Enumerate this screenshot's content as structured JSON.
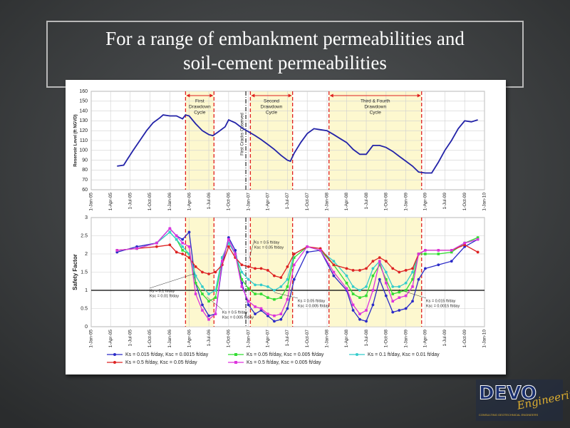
{
  "slide": {
    "title_lines": [
      "For a range of embankment permeabilities and",
      "soil-cement permeabilities"
    ]
  },
  "chart_data": [
    {
      "type": "line",
      "ylabel": "Reservoir Level (ft NGVD)",
      "color": "#2323a8",
      "grid": true,
      "x": [
        "2005-05-01",
        "2005-06-01",
        "2005-06-15",
        "2005-07-15",
        "2005-08-15",
        "2005-09-15",
        "2005-10-15",
        "2005-11-15",
        "2005-12-01",
        "2006-01-01",
        "2006-02-01",
        "2006-03-01",
        "2006-03-15",
        "2006-04-01",
        "2006-05-01",
        "2006-06-01",
        "2006-07-01",
        "2006-07-20",
        "2006-08-15",
        "2006-09-15",
        "2006-10-01",
        "2006-11-01",
        "2006-12-01",
        "2007-01-01",
        "2007-02-01",
        "2007-03-01",
        "2007-04-01",
        "2007-05-01",
        "2007-06-01",
        "2007-07-01",
        "2007-07-15",
        "2007-08-01",
        "2007-09-01",
        "2007-10-01",
        "2007-11-01",
        "2007-12-01",
        "2008-01-01",
        "2008-02-01",
        "2008-03-01",
        "2008-04-01",
        "2008-05-01",
        "2008-06-01",
        "2008-07-01",
        "2008-08-01",
        "2008-09-01",
        "2008-10-01",
        "2008-11-01",
        "2008-12-01",
        "2009-01-01",
        "2009-02-01",
        "2009-03-01",
        "2009-04-01",
        "2009-05-01",
        "2009-06-01",
        "2009-07-01",
        "2009-08-01",
        "2009-09-01",
        "2009-10-01",
        "2009-11-01",
        "2009-12-01"
      ],
      "values": [
        84,
        85,
        90,
        100,
        110,
        120,
        128,
        133,
        136,
        135,
        135,
        132,
        136,
        135,
        127,
        120,
        116,
        115,
        119,
        124,
        131,
        128,
        123,
        119,
        115,
        111,
        106,
        101,
        95,
        90,
        89,
        97,
        108,
        117,
        122,
        121,
        120,
        116,
        112,
        108,
        101,
        96,
        96,
        105,
        105,
        103,
        99,
        94,
        89,
        84,
        78,
        77,
        77,
        88,
        100,
        110,
        122,
        130,
        129,
        131
      ],
      "xlim": [
        "2005-01-01",
        "2010-01-01"
      ],
      "ylim": [
        60,
        160
      ],
      "yticks": [
        60,
        70,
        80,
        90,
        100,
        110,
        120,
        130,
        140,
        150,
        160
      ],
      "xticks": [
        {
          "value": "2005-01-01",
          "label": "1-Jan-05"
        },
        {
          "value": "2005-04-01",
          "label": "1-Apr-05"
        },
        {
          "value": "2005-07-01",
          "label": "1-Jul-05"
        },
        {
          "value": "2005-10-01",
          "label": "1-Oct-05"
        },
        {
          "value": "2006-01-01",
          "label": "1-Jan-06"
        },
        {
          "value": "2006-04-01",
          "label": "1-Apr-06"
        },
        {
          "value": "2006-07-01",
          "label": "1-Jul-06"
        },
        {
          "value": "2006-10-01",
          "label": "1-Oct-06"
        },
        {
          "value": "2007-01-01",
          "label": "1-Jan-07"
        },
        {
          "value": "2007-04-01",
          "label": "1-Apr-07"
        },
        {
          "value": "2007-07-01",
          "label": "1-Jul-07"
        },
        {
          "value": "2007-10-01",
          "label": "1-Oct-07"
        },
        {
          "value": "2008-01-01",
          "label": "1-Jan-08"
        },
        {
          "value": "2008-04-01",
          "label": "1-Apr-08"
        },
        {
          "value": "2008-07-01",
          "label": "1-Jul-08"
        },
        {
          "value": "2008-10-01",
          "label": "1-Oct-08"
        },
        {
          "value": "2009-01-01",
          "label": "1-Jan-09"
        },
        {
          "value": "2009-04-01",
          "label": "1-Apr-09"
        },
        {
          "value": "2009-07-01",
          "label": "1-Jul-09"
        },
        {
          "value": "2009-10-01",
          "label": "1-Oct-09"
        },
        {
          "value": "2010-01-01",
          "label": "1-Jan-10"
        }
      ],
      "bands": [
        {
          "from": "2006-03-15",
          "to": "2006-07-25",
          "label_lines": [
            "First",
            "Drawdown",
            "Cycle"
          ]
        },
        {
          "from": "2007-01-10",
          "to": "2007-07-25",
          "label_lines": [
            "Second",
            "Drawdown",
            "Cycle"
          ]
        },
        {
          "from": "2008-01-10",
          "to": "2009-03-15",
          "label_lines": [
            "Third & Fourth",
            "Drawdown",
            "Cycle"
          ]
        }
      ],
      "vline": {
        "x": "2006-12-20",
        "label": "First Cracks Observed"
      }
    },
    {
      "type": "line",
      "ylabel": "Safety Factor",
      "grid": true,
      "reference_line": 1,
      "x": [
        "2005-05-01",
        "2005-08-01",
        "2005-11-01",
        "2006-01-01",
        "2006-02-01",
        "2006-03-01",
        "2006-04-01",
        "2006-05-01",
        "2006-06-01",
        "2006-07-01",
        "2006-08-01",
        "2006-09-01",
        "2006-10-01",
        "2006-11-01",
        "2006-12-01",
        "2007-01-01",
        "2007-02-01",
        "2007-03-01",
        "2007-04-01",
        "2007-05-01",
        "2007-06-01",
        "2007-07-01",
        "2007-08-01",
        "2007-10-01",
        "2007-12-01",
        "2008-02-01",
        "2008-04-01",
        "2008-05-01",
        "2008-06-01",
        "2008-07-01",
        "2008-08-01",
        "2008-09-01",
        "2008-10-01",
        "2008-11-01",
        "2008-12-01",
        "2009-01-01",
        "2009-02-01",
        "2009-03-01",
        "2009-04-01",
        "2009-06-01",
        "2009-08-01",
        "2009-10-01",
        "2009-12-01"
      ],
      "series": [
        {
          "name": "Ks = 0.015 ft/day, Ksc = 0.0015 ft/day",
          "color": "#2b2bc8",
          "marker": "circle",
          "values": [
            2.05,
            2.2,
            2.3,
            2.7,
            2.5,
            2.4,
            2.6,
            1.2,
            0.6,
            0.3,
            0.35,
            1.7,
            2.45,
            2.1,
            1.2,
            0.6,
            0.35,
            0.45,
            0.3,
            0.15,
            0.2,
            0.5,
            1.3,
            2.05,
            2.1,
            1.4,
            1.0,
            0.45,
            0.2,
            0.15,
            0.6,
            1.3,
            0.85,
            0.4,
            0.45,
            0.5,
            0.7,
            1.3,
            1.6,
            1.7,
            1.8,
            2.2,
            2.4
          ]
        },
        {
          "name": "Ks = 0.05 ft/day, Ksc = 0.005 ft/day",
          "color": "#33dd33",
          "marker": "square",
          "values": [
            2.1,
            2.15,
            2.3,
            2.6,
            2.4,
            2.1,
            2.0,
            1.2,
            0.9,
            0.7,
            0.8,
            1.9,
            2.3,
            2.0,
            1.3,
            1.05,
            0.9,
            0.9,
            0.8,
            0.75,
            0.8,
            1.1,
            1.9,
            2.2,
            2.1,
            1.7,
            1.2,
            0.9,
            0.8,
            0.85,
            1.4,
            1.7,
            1.3,
            0.9,
            0.95,
            1.0,
            1.3,
            2.0,
            2.0,
            2.0,
            2.05,
            2.3,
            2.45
          ]
        },
        {
          "name": "Ks = 0.1 ft/day, Ksc = 0.01 ft/day",
          "color": "#33cccc",
          "marker": "circle",
          "values": [
            2.1,
            2.15,
            2.3,
            2.6,
            2.4,
            2.2,
            2.0,
            1.4,
            1.1,
            0.9,
            1.0,
            1.9,
            2.3,
            2.0,
            1.5,
            1.3,
            1.15,
            1.15,
            1.1,
            1.0,
            1.1,
            1.3,
            2.0,
            2.2,
            2.1,
            1.8,
            1.4,
            1.1,
            1.0,
            1.1,
            1.6,
            1.8,
            1.5,
            1.1,
            1.1,
            1.2,
            1.5,
            2.0,
            2.1,
            2.1,
            2.1,
            2.3,
            2.4
          ]
        },
        {
          "name": "Ks = 0.5 ft/day, Ksc = 0.05 ft/day",
          "color": "#dd2222",
          "marker": "circle",
          "values": [
            2.1,
            2.15,
            2.2,
            2.25,
            2.05,
            2.0,
            1.9,
            1.65,
            1.5,
            1.45,
            1.5,
            1.7,
            2.2,
            1.9,
            1.7,
            1.65,
            1.6,
            1.6,
            1.55,
            1.4,
            1.35,
            1.65,
            2.0,
            2.2,
            2.15,
            1.7,
            1.6,
            1.55,
            1.55,
            1.6,
            1.8,
            1.9,
            1.8,
            1.6,
            1.5,
            1.55,
            1.6,
            2.0,
            2.1,
            2.1,
            2.1,
            2.25,
            2.05
          ]
        },
        {
          "name": "Ks = 0.5 ft/day, Ksc = 0.005 ft/day",
          "color": "#dd33dd",
          "marker": "square",
          "values": [
            2.1,
            2.15,
            2.3,
            2.7,
            2.5,
            2.3,
            2.2,
            0.9,
            0.45,
            0.2,
            0.35,
            1.8,
            2.4,
            2.0,
            1.1,
            0.7,
            0.55,
            0.5,
            0.35,
            0.3,
            0.35,
            0.75,
            1.7,
            2.2,
            2.1,
            1.5,
            1.05,
            0.6,
            0.35,
            0.45,
            1.0,
            1.8,
            1.2,
            0.7,
            0.8,
            0.85,
            1.1,
            2.0,
            2.1,
            2.1,
            2.1,
            2.3,
            2.4
          ]
        }
      ],
      "xlim": [
        "2005-01-01",
        "2010-01-01"
      ],
      "ylim": [
        0,
        3
      ],
      "yticks": [
        0,
        0.5,
        1,
        1.5,
        2,
        2.5,
        3
      ],
      "xticks": [
        {
          "value": "2005-01-01",
          "label": "1-Jan-05"
        },
        {
          "value": "2005-04-01",
          "label": "1-Apr-05"
        },
        {
          "value": "2005-07-01",
          "label": "1-Jul-05"
        },
        {
          "value": "2005-10-01",
          "label": "1-Oct-05"
        },
        {
          "value": "2006-01-01",
          "label": "1-Jan-06"
        },
        {
          "value": "2006-04-01",
          "label": "1-Apr-06"
        },
        {
          "value": "2006-07-01",
          "label": "1-Jul-06"
        },
        {
          "value": "2006-10-01",
          "label": "1-Oct-06"
        },
        {
          "value": "2007-01-01",
          "label": "1-Jan-07"
        },
        {
          "value": "2007-04-01",
          "label": "1-Apr-07"
        },
        {
          "value": "2007-07-01",
          "label": "1-Jul-07"
        },
        {
          "value": "2007-10-01",
          "label": "1-Oct-07"
        },
        {
          "value": "2008-01-01",
          "label": "1-Jan-08"
        },
        {
          "value": "2008-04-01",
          "label": "1-Apr-08"
        },
        {
          "value": "2008-07-01",
          "label": "1-Jul-08"
        },
        {
          "value": "2008-10-01",
          "label": "1-Oct-08"
        },
        {
          "value": "2009-01-01",
          "label": "1-Jan-09"
        },
        {
          "value": "2009-04-01",
          "label": "1-Apr-09"
        },
        {
          "value": "2009-07-01",
          "label": "1-Jul-09"
        },
        {
          "value": "2009-10-01",
          "label": "1-Oct-09"
        },
        {
          "value": "2010-01-01",
          "label": "1-Jan-10"
        }
      ],
      "bands": [
        {
          "from": "2006-03-15",
          "to": "2006-07-25"
        },
        {
          "from": "2007-01-10",
          "to": "2007-07-25"
        },
        {
          "from": "2008-01-10",
          "to": "2009-03-15"
        }
      ],
      "vline": {
        "x": "2006-12-20"
      },
      "annotations": [
        {
          "text_lines": [
            "Ks = 0.5 ft/day",
            "Ksc = 0.05 ft/day"
          ]
        },
        {
          "text_lines": [
            "Ks = 0.1 ft/day",
            "Ksc = 0.01 ft/day"
          ]
        },
        {
          "text_lines": [
            "Ks = 0.5 ft/day",
            "Ksc = 0.005 ft/day"
          ]
        },
        {
          "text_lines": [
            "Ks = 0.05 ft/day",
            "Ksc = 0.005 ft/day"
          ]
        },
        {
          "text_lines": [
            "Ks = 0.015 ft/day",
            "Ksc = 0.0015 ft/day"
          ]
        }
      ]
    }
  ],
  "logo": {
    "name": "DEVO",
    "script": "Engineering",
    "tagline": "CONSULTING GEOTECHNICAL ENGINEERS"
  }
}
